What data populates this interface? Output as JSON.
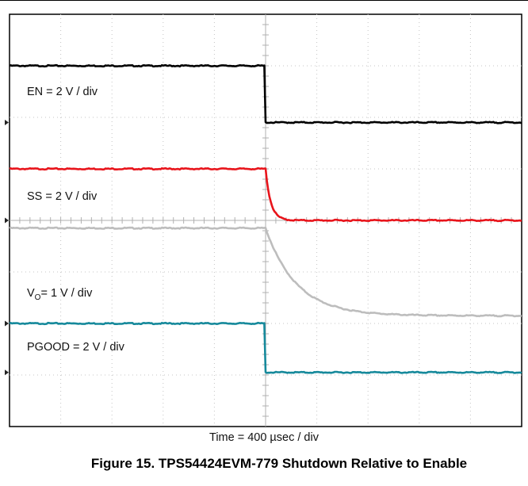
{
  "chart_data": {
    "type": "line",
    "grid": true,
    "grid_divisions": {
      "x": 10,
      "y": 8
    },
    "x_scale": "Time = 400 µsec / div",
    "title": "Figure 15. TPS54424EVM-779 Shutdown Relative to Enable",
    "series": [
      {
        "name": "EN",
        "label": "EN =  2 V / div",
        "color": "#000000",
        "initial_div": 7.0,
        "final_div": 5.9,
        "trigger_div": 5.0,
        "shape": "step"
      },
      {
        "name": "SS",
        "label": "SS = 2 V / div",
        "color": "#e8141b",
        "initial_div": 5.0,
        "final_div": 4.0,
        "trigger_div": 5.0,
        "shape": "fast_decay"
      },
      {
        "name": "Vo",
        "label_main": "V",
        "label_sub": "O",
        "label_rest": "= 1 V / div",
        "color": "#bdbdbd",
        "initial_div": 3.85,
        "final_div": 2.15,
        "trigger_div": 5.0,
        "shape": "slow_decay"
      },
      {
        "name": "PGOOD",
        "label": "PGOOD = 2 V / div",
        "color": "#16899b",
        "initial_div": 2.0,
        "final_div": 1.05,
        "trigger_div": 5.0,
        "shape": "step"
      }
    ]
  }
}
